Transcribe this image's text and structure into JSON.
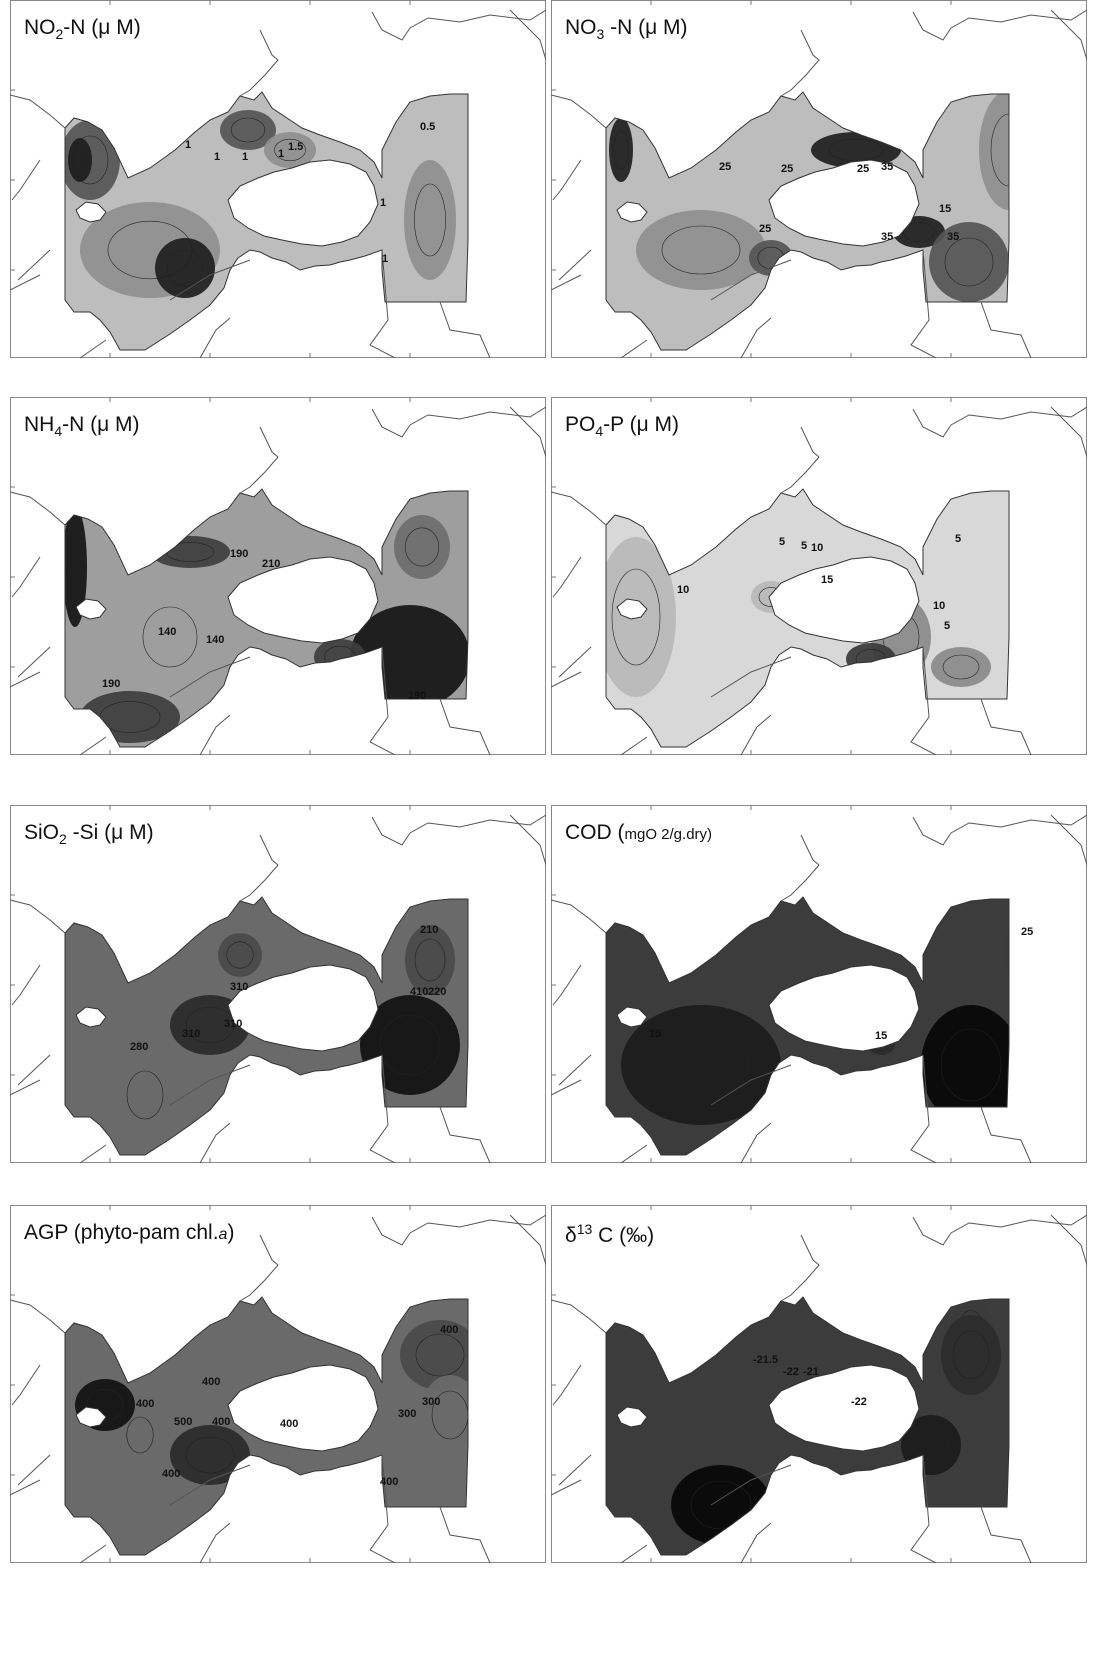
{
  "panels": [
    {
      "id": "no2",
      "title_parts": [
        "NO",
        "2",
        "-N (μ M)"
      ],
      "shading": "medium",
      "contour_labels": [
        "1",
        "1",
        "1",
        "1",
        "1.5",
        "0.5",
        "1",
        "1"
      ]
    },
    {
      "id": "no3",
      "title_parts": [
        "NO",
        "3",
        " -N (μ M)"
      ],
      "shading": "medium",
      "contour_labels": [
        "25",
        "25",
        "25",
        "25",
        "35",
        "35",
        "15",
        "35"
      ]
    },
    {
      "id": "nh4",
      "title_parts": [
        "NH",
        "4",
        "-N (μ M)"
      ],
      "shading": "medium-dark",
      "contour_labels": [
        "190",
        "190",
        "140",
        "140",
        "210",
        "190"
      ]
    },
    {
      "id": "po4",
      "title_parts": [
        "PO",
        "4",
        "-P (μ M)"
      ],
      "shading": "light",
      "contour_labels": [
        "5",
        "5",
        "10",
        "10",
        "10",
        "5",
        "15",
        "5"
      ]
    },
    {
      "id": "sio2",
      "title_parts": [
        "SiO",
        "2",
        " -Si (μ M)"
      ],
      "shading": "dark",
      "contour_labels": [
        "210",
        "280",
        "310",
        "310",
        "310",
        "220",
        "410"
      ]
    },
    {
      "id": "cod",
      "title_parts": [
        "COD (",
        "mgO 2/g.dry)"
      ],
      "shading": "very-dark",
      "contour_labels": [
        "25",
        "15",
        "15"
      ]
    },
    {
      "id": "agp",
      "title_parts": [
        "AGP (phyto-pam chl.",
        "a",
        ")"
      ],
      "shading": "dark",
      "contour_labels": [
        "400",
        "400",
        "400",
        "400",
        "400",
        "300",
        "500",
        "400",
        "400",
        "300"
      ]
    },
    {
      "id": "d13c",
      "title_parts": [
        "δ",
        "13",
        " C (‰)"
      ],
      "shading": "very-dark",
      "contour_labels": [
        "-21.5",
        "-22",
        "-21",
        "-22"
      ]
    }
  ]
}
